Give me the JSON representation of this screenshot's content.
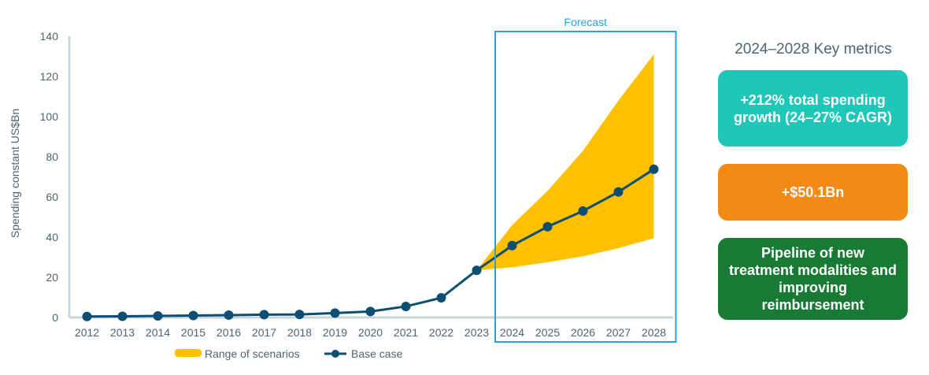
{
  "chart_data": {
    "type": "line",
    "x": [
      "2012",
      "2013",
      "2014",
      "2015",
      "2016",
      "2017",
      "2018",
      "2019",
      "2020",
      "2021",
      "2022",
      "2023",
      "2024",
      "2025",
      "2026",
      "2027",
      "2028"
    ],
    "series": [
      {
        "name": "Base case",
        "type": "line",
        "values": [
          0.5,
          0.6,
          0.8,
          1.0,
          1.2,
          1.4,
          1.5,
          2.2,
          3.0,
          5.5,
          9.8,
          23.5,
          35.8,
          45.2,
          53.0,
          62.5,
          73.8
        ],
        "color": "#0d4f72"
      },
      {
        "name": "Range of scenarios",
        "type": "area-range",
        "x": [
          "2023",
          "2024",
          "2025",
          "2026",
          "2027",
          "2028"
        ],
        "low": [
          23.5,
          25.0,
          27.5,
          30.5,
          34.5,
          39.5
        ],
        "high": [
          23.5,
          46.0,
          63.0,
          83.0,
          108.0,
          131.0
        ],
        "color": "#ffc000"
      }
    ],
    "ylabel": "Spending constant US$Bn",
    "ylim": [
      0,
      140
    ],
    "yticks": [
      0,
      20,
      40,
      60,
      80,
      100,
      120,
      140
    ],
    "forecast": {
      "label": "Forecast",
      "from": "2024",
      "to": "2028"
    },
    "legend": {
      "position": "bottom",
      "items": [
        "Range of scenarios",
        "Base case"
      ]
    },
    "grid": false
  },
  "metrics": {
    "title": "2024–2028 Key metrics",
    "cards": [
      {
        "text": "+212% total spending growth (24–27% CAGR)",
        "color": "#1ec7b7"
      },
      {
        "text": "+$50.1Bn",
        "color": "#f28a15"
      },
      {
        "text": "Pipeline of new treatment modalities and improving reimbursement",
        "color": "#187a34"
      }
    ]
  }
}
